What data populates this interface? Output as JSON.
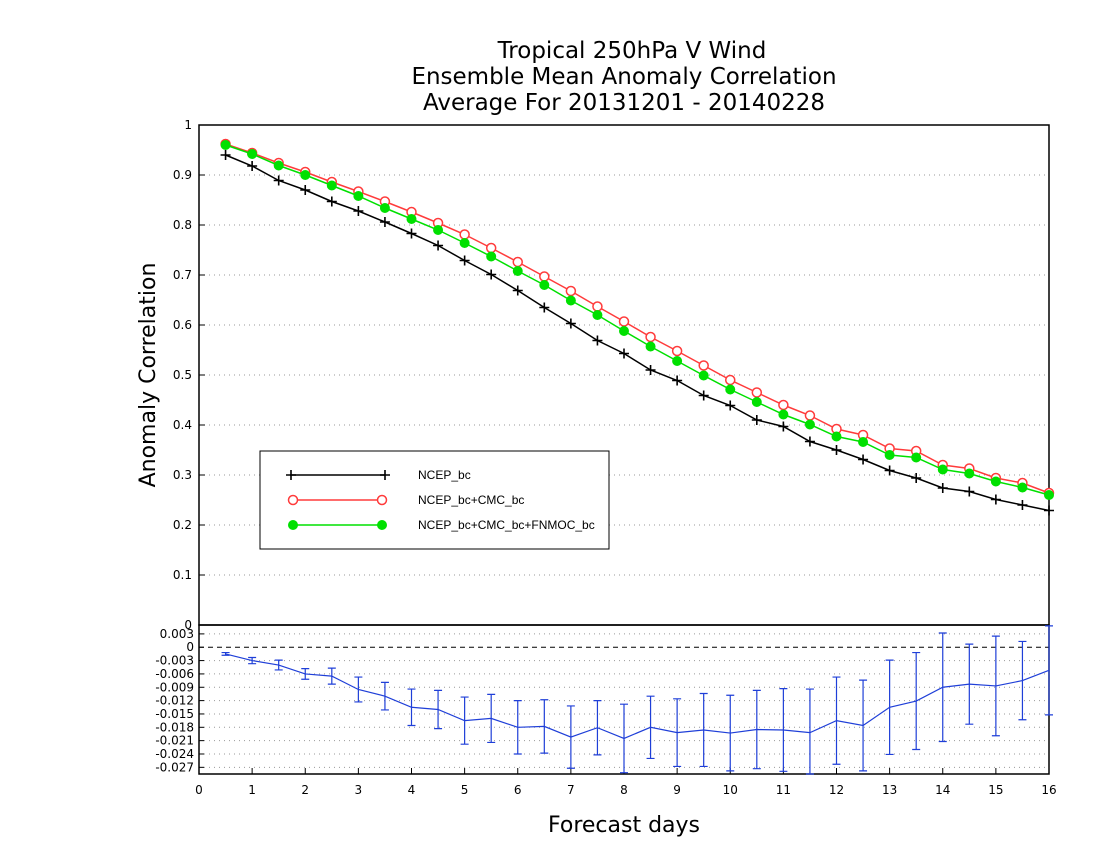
{
  "chart_data": [
    {
      "type": "line",
      "title": [
        "Tropical 250hPa V Wind",
        "Ensemble Mean Anomaly Correlation",
        "Average For 20131201 - 20140228"
      ],
      "ylabel": "Anomaly Correlation",
      "xlim": [
        0,
        16
      ],
      "ylim": [
        0,
        1
      ],
      "yticks": [
        "0",
        "0.1",
        "0.2",
        "0.3",
        "0.4",
        "0.5",
        "0.6",
        "0.7",
        "0.8",
        "0.9",
        "1"
      ],
      "grid": "horizontal dotted",
      "legend_position": "left-middle",
      "x": [
        0.5,
        1,
        1.5,
        2,
        2.5,
        3,
        3.5,
        4,
        4.5,
        5,
        5.5,
        6,
        6.5,
        7,
        7.5,
        8,
        8.5,
        9,
        9.5,
        10,
        10.5,
        11,
        11.5,
        12,
        12.5,
        13,
        13.5,
        14,
        14.5,
        15,
        15.5,
        16
      ],
      "series": [
        {
          "name": "NCEP_bc",
          "color": "#000000",
          "marker": "plus",
          "values": [
            0.94,
            0.918,
            0.889,
            0.87,
            0.847,
            0.828,
            0.806,
            0.783,
            0.759,
            0.729,
            0.701,
            0.669,
            0.635,
            0.603,
            0.569,
            0.543,
            0.51,
            0.489,
            0.459,
            0.439,
            0.41,
            0.397,
            0.367,
            0.35,
            0.331,
            0.309,
            0.294,
            0.274,
            0.267,
            0.251,
            0.24,
            0.229
          ]
        },
        {
          "name": "NCEP_bc+CMC_bc",
          "color": "#ff3b3b",
          "marker": "open-circle",
          "values": [
            0.962,
            0.944,
            0.924,
            0.906,
            0.886,
            0.867,
            0.847,
            0.826,
            0.804,
            0.781,
            0.754,
            0.726,
            0.697,
            0.668,
            0.637,
            0.607,
            0.576,
            0.548,
            0.519,
            0.49,
            0.465,
            0.44,
            0.419,
            0.392,
            0.38,
            0.353,
            0.348,
            0.32,
            0.313,
            0.294,
            0.284,
            0.264
          ]
        },
        {
          "name": "NCEP_bc+CMC_bc+FNMOC_bc",
          "color": "#00e000",
          "marker": "filled-circle",
          "values": [
            0.96,
            0.942,
            0.919,
            0.9,
            0.879,
            0.858,
            0.834,
            0.812,
            0.79,
            0.764,
            0.737,
            0.708,
            0.68,
            0.649,
            0.62,
            0.588,
            0.557,
            0.528,
            0.499,
            0.471,
            0.446,
            0.421,
            0.401,
            0.377,
            0.366,
            0.34,
            0.335,
            0.311,
            0.303,
            0.287,
            0.275,
            0.26
          ]
        }
      ]
    },
    {
      "type": "line",
      "title": "",
      "xlabel": "Forecast days",
      "xticks": [
        "0",
        "1",
        "2",
        "3",
        "4",
        "5",
        "6",
        "7",
        "8",
        "9",
        "10",
        "11",
        "12",
        "13",
        "14",
        "15",
        "16"
      ],
      "xlim": [
        0,
        16
      ],
      "ylim": [
        -0.0285,
        0.005
      ],
      "yticks": [
        "0.003",
        "0",
        "-0.003",
        "-0.006",
        "-0.009",
        "-0.012",
        "-0.015",
        "-0.018",
        "-0.021",
        "-0.024",
        "-0.027"
      ],
      "grid": "horizontal dotted",
      "zero_line": "dashed",
      "x": [
        0.5,
        1,
        1.5,
        2,
        2.5,
        3,
        3.5,
        4,
        4.5,
        5,
        5.5,
        6,
        6.5,
        7,
        7.5,
        8,
        8.5,
        9,
        9.5,
        10,
        10.5,
        11,
        11.5,
        12,
        12.5,
        13,
        13.5,
        14,
        14.5,
        15,
        15.5,
        16
      ],
      "series": [
        {
          "color": "#1f3fd8",
          "marker": "error-bar",
          "values": [
            -0.0015,
            -0.003,
            -0.004,
            -0.006,
            -0.0065,
            -0.0095,
            -0.011,
            -0.0135,
            -0.014,
            -0.0165,
            -0.016,
            -0.018,
            -0.0178,
            -0.0202,
            -0.0181,
            -0.0205,
            -0.018,
            -0.0192,
            -0.0186,
            -0.0193,
            -0.0185,
            -0.0186,
            -0.0192,
            -0.0165,
            -0.0176,
            -0.0135,
            -0.0121,
            -0.009,
            -0.0083,
            -0.0087,
            -0.0075,
            -0.0052
          ],
          "err_low": [
            -0.0018,
            -0.0037,
            -0.0051,
            -0.0072,
            -0.0083,
            -0.0123,
            -0.0141,
            -0.0176,
            -0.0183,
            -0.0218,
            -0.0214,
            -0.024,
            -0.0238,
            -0.0272,
            -0.0242,
            -0.0282,
            -0.025,
            -0.0268,
            -0.0268,
            -0.0278,
            -0.0273,
            -0.0279,
            -0.029,
            -0.0263,
            -0.0278,
            -0.0241,
            -0.023,
            -0.0212,
            -0.0173,
            -0.0199,
            -0.0163,
            -0.0152
          ],
          "err_high": [
            -0.0012,
            -0.0023,
            -0.0029,
            -0.0048,
            -0.0047,
            -0.0067,
            -0.0079,
            -0.0094,
            -0.0097,
            -0.0112,
            -0.0106,
            -0.012,
            -0.0118,
            -0.0132,
            -0.012,
            -0.0128,
            -0.011,
            -0.0116,
            -0.0104,
            -0.0108,
            -0.0097,
            -0.0093,
            -0.0094,
            -0.0067,
            -0.0074,
            -0.0029,
            -0.0012,
            0.0032,
            0.0007,
            0.0025,
            0.0013,
            0.0048
          ]
        }
      ]
    }
  ]
}
